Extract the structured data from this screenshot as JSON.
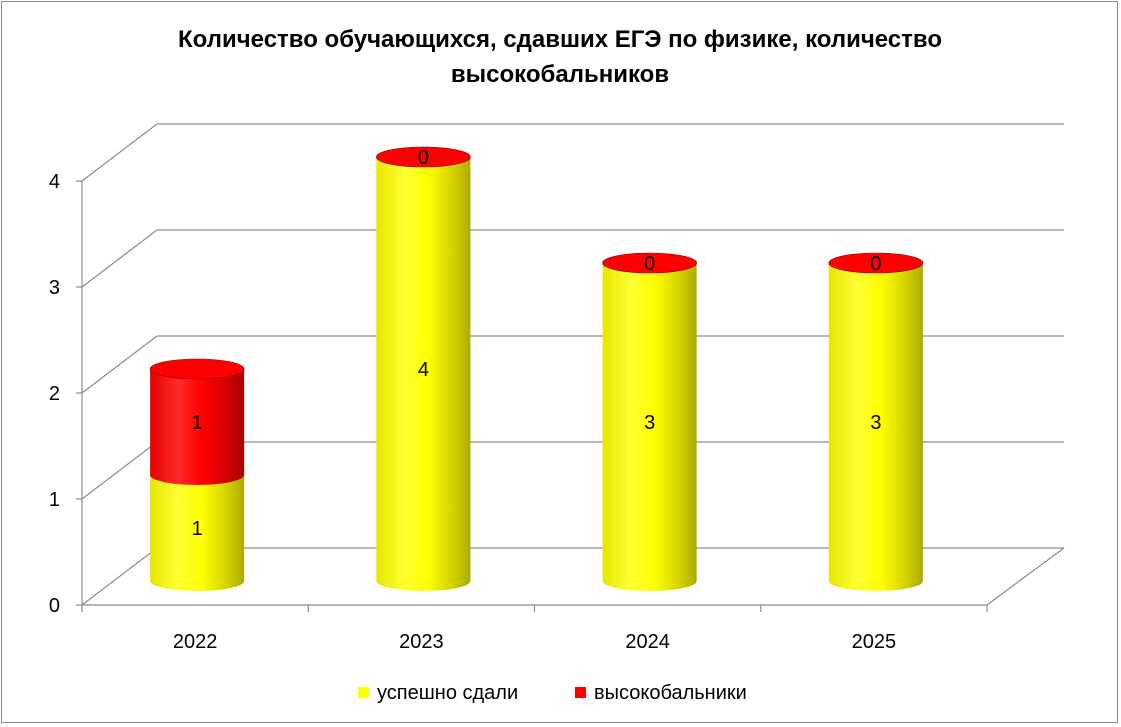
{
  "chart_data": {
    "type": "bar",
    "title": "Количество обучающихся, сдавших ЕГЭ по физике, количество высокобальников",
    "title_lines": [
      "Количество обучающихся, сдавших ЕГЭ по физике, количество",
      "высокобальников"
    ],
    "categories": [
      "2022",
      "2023",
      "2024",
      "2025"
    ],
    "stacked": true,
    "shape": "3d-cylinder",
    "series": [
      {
        "name": "успешно сдали",
        "values": [
          1,
          4,
          3,
          3
        ],
        "color": "#ffff00"
      },
      {
        "name": "высокобальники",
        "values": [
          1,
          0,
          0,
          0
        ],
        "color": "#ff0000"
      }
    ],
    "ylim": [
      0,
      4
    ],
    "yticks": [
      "0",
      "1",
      "2",
      "3",
      "4"
    ],
    "grid": true,
    "legend_position": "bottom"
  }
}
